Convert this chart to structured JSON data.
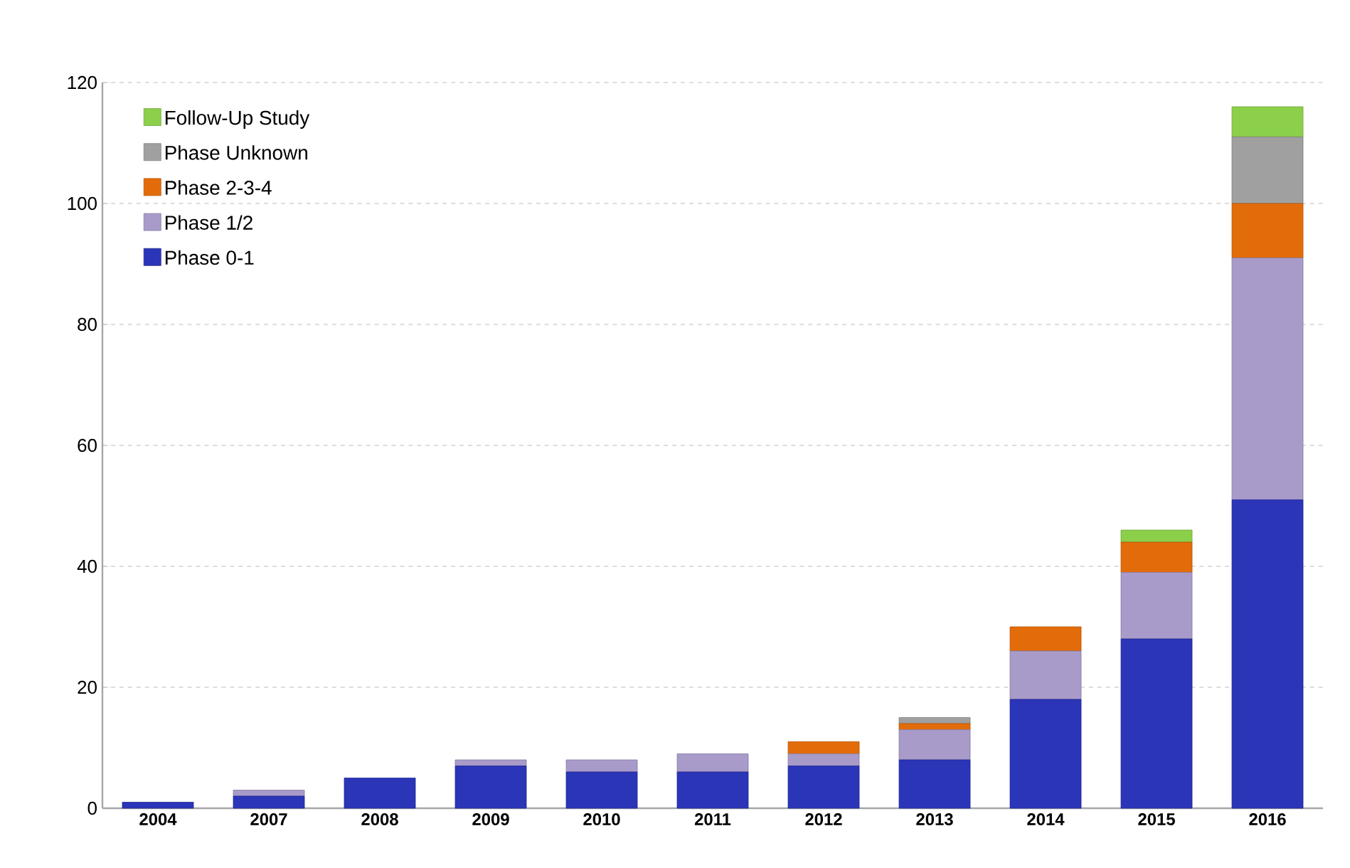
{
  "chart_data": {
    "type": "bar",
    "stacked": true,
    "categories": [
      "2004",
      "2007",
      "2008",
      "2009",
      "2010",
      "2011",
      "2012",
      "2013",
      "2014",
      "2015",
      "2016"
    ],
    "series": [
      {
        "name": "Phase 0-1",
        "color": "#2b35b8",
        "values": [
          1,
          2,
          5,
          7,
          6,
          6,
          7,
          8,
          18,
          28,
          51
        ]
      },
      {
        "name": "Phase 1/2",
        "color": "#a99bc9",
        "values": [
          0,
          1,
          0,
          1,
          2,
          3,
          2,
          5,
          8,
          11,
          40
        ]
      },
      {
        "name": "Phase 2-3-4",
        "color": "#e36c0a",
        "values": [
          0,
          0,
          0,
          0,
          0,
          0,
          2,
          1,
          4,
          5,
          9
        ]
      },
      {
        "name": "Phase Unknown",
        "color": "#a0a0a0",
        "values": [
          0,
          0,
          0,
          0,
          0,
          0,
          0,
          1,
          0,
          0,
          11
        ]
      },
      {
        "name": "Follow-Up Study",
        "color": "#8ccf4a",
        "values": [
          0,
          0,
          0,
          0,
          0,
          0,
          0,
          0,
          0,
          2,
          5
        ]
      }
    ],
    "ylim": [
      0,
      120
    ],
    "yticks": [
      0,
      20,
      40,
      60,
      80,
      100,
      120
    ],
    "grid": "y",
    "legend": "top left"
  }
}
